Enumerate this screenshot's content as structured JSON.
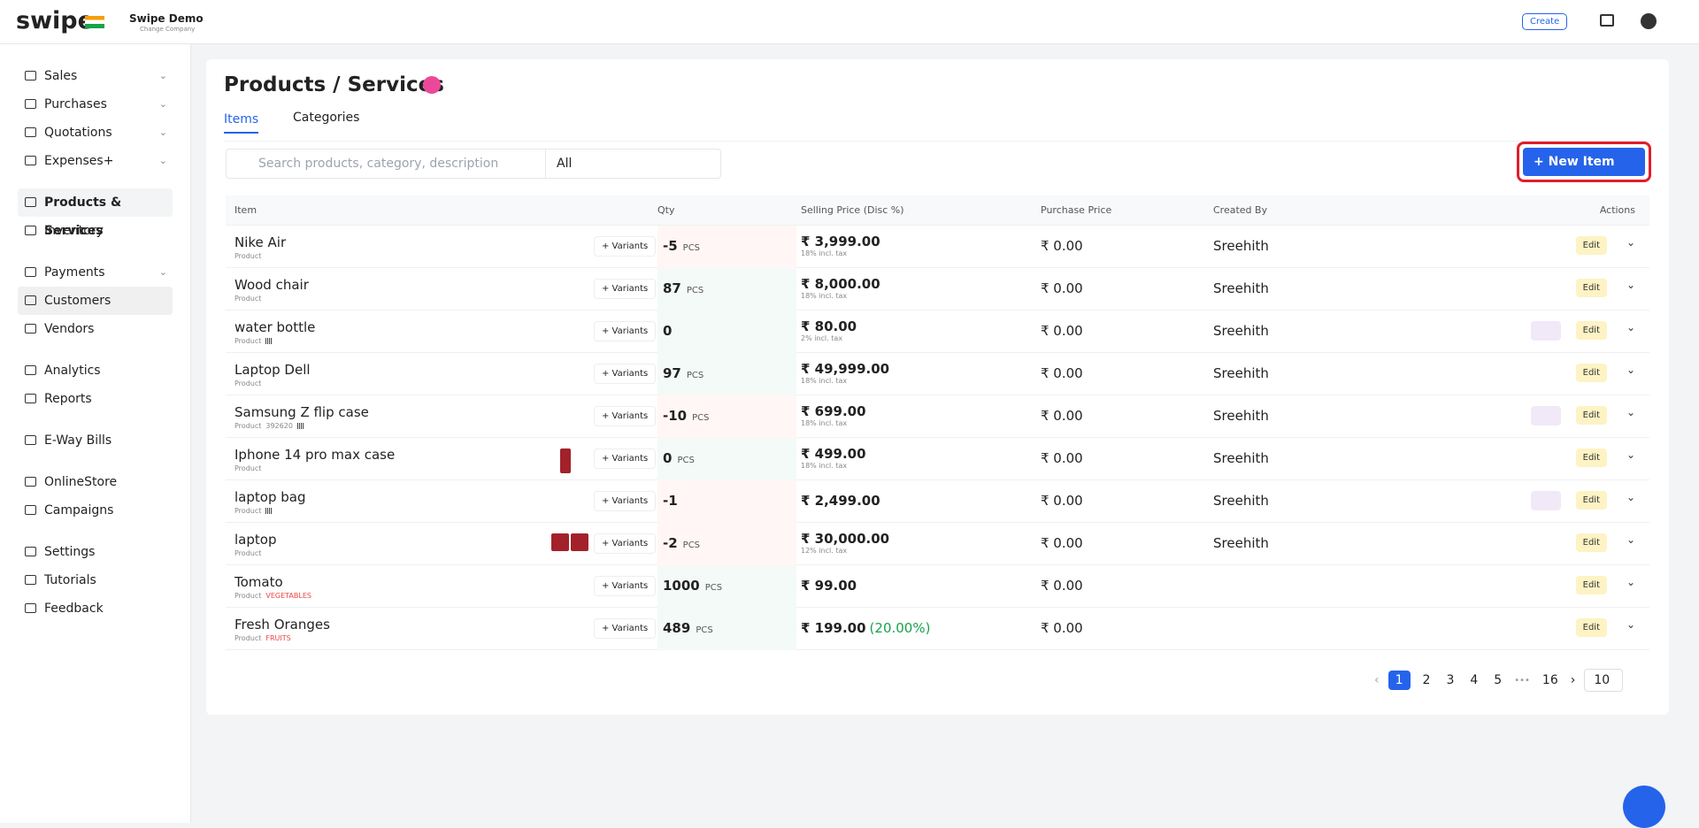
{
  "header": {
    "logo": "swipe",
    "company": "Swipe Demo",
    "change_company": "Change Company",
    "create": "Create"
  },
  "sidebar": {
    "groups": [
      [
        {
          "label": "Sales",
          "expandable": true
        },
        {
          "label": "Purchases",
          "expandable": true
        },
        {
          "label": "Quotations",
          "expandable": true
        },
        {
          "label": "Expenses+",
          "expandable": true
        }
      ],
      [
        {
          "label": "Products & Services",
          "active": true
        },
        {
          "label": "Inventory"
        }
      ],
      [
        {
          "label": "Payments",
          "expandable": true
        },
        {
          "label": "Customers",
          "highlight": true
        },
        {
          "label": "Vendors"
        }
      ],
      [
        {
          "label": "Analytics"
        },
        {
          "label": "Reports"
        }
      ],
      [
        {
          "label": "E-Way Bills"
        }
      ],
      [
        {
          "label": "OnlineStore"
        },
        {
          "label": "Campaigns"
        }
      ],
      [
        {
          "label": "Settings"
        },
        {
          "label": "Tutorials"
        },
        {
          "label": "Feedback"
        }
      ]
    ]
  },
  "page": {
    "title": "Products / Services",
    "tabs": [
      "Items",
      "Categories"
    ],
    "search_placeholder": "Search products, category, description",
    "filter": "All",
    "new_item": "+ New Item"
  },
  "table": {
    "columns": [
      "Item",
      "Qty",
      "Selling Price (Disc %)",
      "Purchase Price",
      "Created By",
      "Actions"
    ],
    "rows": [
      {
        "name": "Nike Air",
        "type": "Product",
        "variants": "+ Variants",
        "qty": "-5",
        "unit": "PCS",
        "price": "₹ 3,999.00",
        "tax": "18% incl. tax",
        "purchase": "₹ 0.00",
        "created_by": "Sreehith",
        "edit": "Edit"
      },
      {
        "name": "Wood chair",
        "type": "Product",
        "variants": "+ Variants",
        "qty": "87",
        "unit": "PCS",
        "price": "₹ 8,000.00",
        "tax": "18% incl. tax",
        "purchase": "₹ 0.00",
        "created_by": "Sreehith",
        "edit": "Edit"
      },
      {
        "name": "water bottle",
        "type": "Product",
        "barcode": true,
        "variants": "+ Variants",
        "qty": "0",
        "price": "₹ 80.00",
        "tax": "2% incl. tax",
        "purchase": "₹ 0.00",
        "created_by": "Sreehith",
        "edit": "Edit"
      },
      {
        "name": "Laptop Dell",
        "type": "Product",
        "variants": "+ Variants",
        "qty": "97",
        "unit": "PCS",
        "price": "₹ 49,999.00",
        "tax": "18% incl. tax",
        "purchase": "₹ 0.00",
        "created_by": "Sreehith",
        "edit": "Edit"
      },
      {
        "name": "Samsung Z flip case",
        "type": "Product",
        "code": "392620",
        "barcode": true,
        "variants": "+ Variants",
        "qty": "-10",
        "unit": "PCS",
        "price": "₹ 699.00",
        "tax": "18% incl. tax",
        "purchase": "₹ 0.00",
        "created_by": "Sreehith",
        "edit": "Edit"
      },
      {
        "name": "Iphone 14 pro max case",
        "type": "Product",
        "images": 1,
        "variants": "+ Variants",
        "qty": "0",
        "unit": "PCS",
        "price": "₹ 499.00",
        "tax": "18% incl. tax",
        "purchase": "₹ 0.00",
        "created_by": "Sreehith",
        "edit": "Edit"
      },
      {
        "name": "laptop bag",
        "type": "Product",
        "barcode": true,
        "variants": "+ Variants",
        "qty": "-1",
        "price": "₹ 2,499.00",
        "purchase": "₹ 0.00",
        "created_by": "Sreehith",
        "edit": "Edit"
      },
      {
        "name": "laptop",
        "type": "Product",
        "images": 2,
        "variants": "+ Variants",
        "qty": "-2",
        "unit": "PCS",
        "price": "₹ 30,000.00",
        "tax": "12% incl. tax",
        "purchase": "₹ 0.00",
        "created_by": "Sreehith",
        "edit": "Edit"
      },
      {
        "name": "Tomato",
        "type": "Product",
        "category": "VEGETABLES",
        "variants": "+ Variants",
        "qty": "1000",
        "unit": "PCS",
        "price": "₹ 99.00",
        "purchase": "₹ 0.00",
        "edit": "Edit"
      },
      {
        "name": "Fresh Oranges",
        "type": "Product",
        "category": "FRUITS",
        "variants": "+ Variants",
        "qty": "489",
        "unit": "PCS",
        "price": "₹ 199.00",
        "discount": "(20.00%)",
        "purchase": "₹ 0.00",
        "edit": "Edit"
      }
    ]
  },
  "pagination": {
    "pages": [
      "1",
      "2",
      "3",
      "4",
      "5",
      "16"
    ],
    "ellipsis": "•••",
    "page_size": "10"
  }
}
